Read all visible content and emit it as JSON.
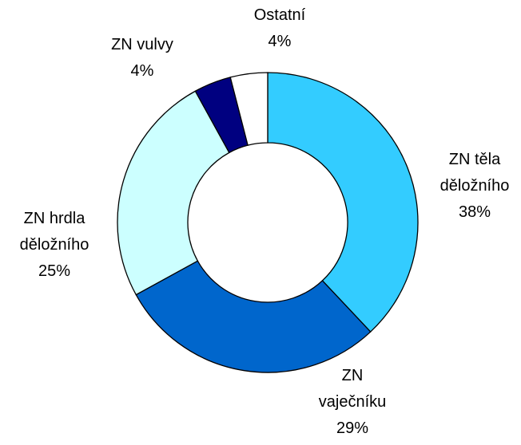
{
  "chart_data": {
    "type": "donut",
    "categories": [
      "ZN těla děložního",
      "ZN vaječníku",
      "ZN hrdla děložního",
      "ZN vulvy",
      "Ostatní"
    ],
    "values": [
      38,
      29,
      25,
      4,
      4
    ],
    "value_labels": [
      "38%",
      "29%",
      "25%",
      "4%",
      "4%"
    ],
    "colors": [
      "#33CCFF",
      "#0066CC",
      "#CCFFFF",
      "#000080",
      "#FFFFFF"
    ]
  }
}
